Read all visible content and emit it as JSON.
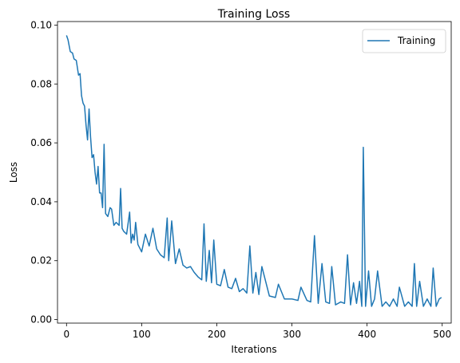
{
  "chart_data": {
    "type": "line",
    "title": "Training Loss",
    "xlabel": "Iterations",
    "ylabel": "Loss",
    "xlim": [
      -12,
      512
    ],
    "ylim": [
      -0.0012,
      0.1012
    ],
    "x_ticks": [
      0,
      100,
      200,
      300,
      400,
      500
    ],
    "x_tick_labels": [
      "0",
      "100",
      "200",
      "300",
      "400",
      "500"
    ],
    "y_ticks": [
      0.0,
      0.02,
      0.04,
      0.06,
      0.08,
      0.1
    ],
    "y_tick_labels": [
      "0.00",
      "0.02",
      "0.04",
      "0.06",
      "0.08",
      "0.10"
    ],
    "grid": false,
    "legend": {
      "position": "top-right"
    },
    "series": [
      {
        "name": "Training",
        "color": "#1f77b4",
        "x": [
          0,
          2,
          5,
          8,
          10,
          13,
          16,
          18,
          20,
          22,
          24,
          26,
          28,
          30,
          32,
          34,
          36,
          38,
          40,
          42,
          44,
          46,
          48,
          50,
          52,
          55,
          58,
          60,
          63,
          66,
          70,
          72,
          74,
          76,
          80,
          84,
          86,
          88,
          90,
          92,
          95,
          100,
          105,
          110,
          115,
          120,
          125,
          130,
          134,
          136,
          140,
          145,
          150,
          155,
          160,
          165,
          170,
          175,
          180,
          183,
          186,
          190,
          193,
          196,
          200,
          205,
          210,
          215,
          220,
          225,
          230,
          235,
          240,
          244,
          248,
          252,
          256,
          260,
          270,
          278,
          282,
          290,
          300,
          308,
          312,
          320,
          325,
          330,
          335,
          340,
          345,
          350,
          353,
          358,
          365,
          370,
          374,
          378,
          382,
          386,
          390,
          393,
          395,
          398,
          402,
          406,
          410,
          414,
          420,
          425,
          430,
          435,
          440,
          443,
          450,
          455,
          460,
          463,
          466,
          470,
          475,
          480,
          485,
          488,
          492,
          496,
          499
        ],
        "y": [
          0.0965,
          0.095,
          0.091,
          0.0905,
          0.0885,
          0.088,
          0.083,
          0.0835,
          0.076,
          0.0735,
          0.0725,
          0.066,
          0.061,
          0.0715,
          0.062,
          0.055,
          0.056,
          0.05,
          0.046,
          0.052,
          0.043,
          0.043,
          0.038,
          0.0595,
          0.036,
          0.035,
          0.038,
          0.0375,
          0.032,
          0.033,
          0.032,
          0.0445,
          0.031,
          0.03,
          0.029,
          0.0365,
          0.026,
          0.029,
          0.027,
          0.033,
          0.0255,
          0.023,
          0.029,
          0.025,
          0.031,
          0.024,
          0.022,
          0.021,
          0.0345,
          0.02,
          0.0335,
          0.019,
          0.024,
          0.0185,
          0.0175,
          0.018,
          0.016,
          0.0145,
          0.0135,
          0.0325,
          0.013,
          0.0235,
          0.0125,
          0.027,
          0.012,
          0.0115,
          0.017,
          0.011,
          0.0105,
          0.014,
          0.0095,
          0.0105,
          0.009,
          0.025,
          0.009,
          0.016,
          0.0085,
          0.018,
          0.008,
          0.0075,
          0.012,
          0.007,
          0.007,
          0.0065,
          0.011,
          0.0065,
          0.006,
          0.0285,
          0.0055,
          0.019,
          0.006,
          0.0055,
          0.018,
          0.005,
          0.006,
          0.0055,
          0.022,
          0.005,
          0.0125,
          0.0055,
          0.013,
          0.0045,
          0.0585,
          0.0045,
          0.0165,
          0.0045,
          0.007,
          0.0165,
          0.0045,
          0.006,
          0.0045,
          0.007,
          0.0045,
          0.011,
          0.0045,
          0.006,
          0.0045,
          0.019,
          0.0045,
          0.013,
          0.0045,
          0.007,
          0.0045,
          0.0175,
          0.0045,
          0.007,
          0.0075
        ]
      }
    ]
  }
}
